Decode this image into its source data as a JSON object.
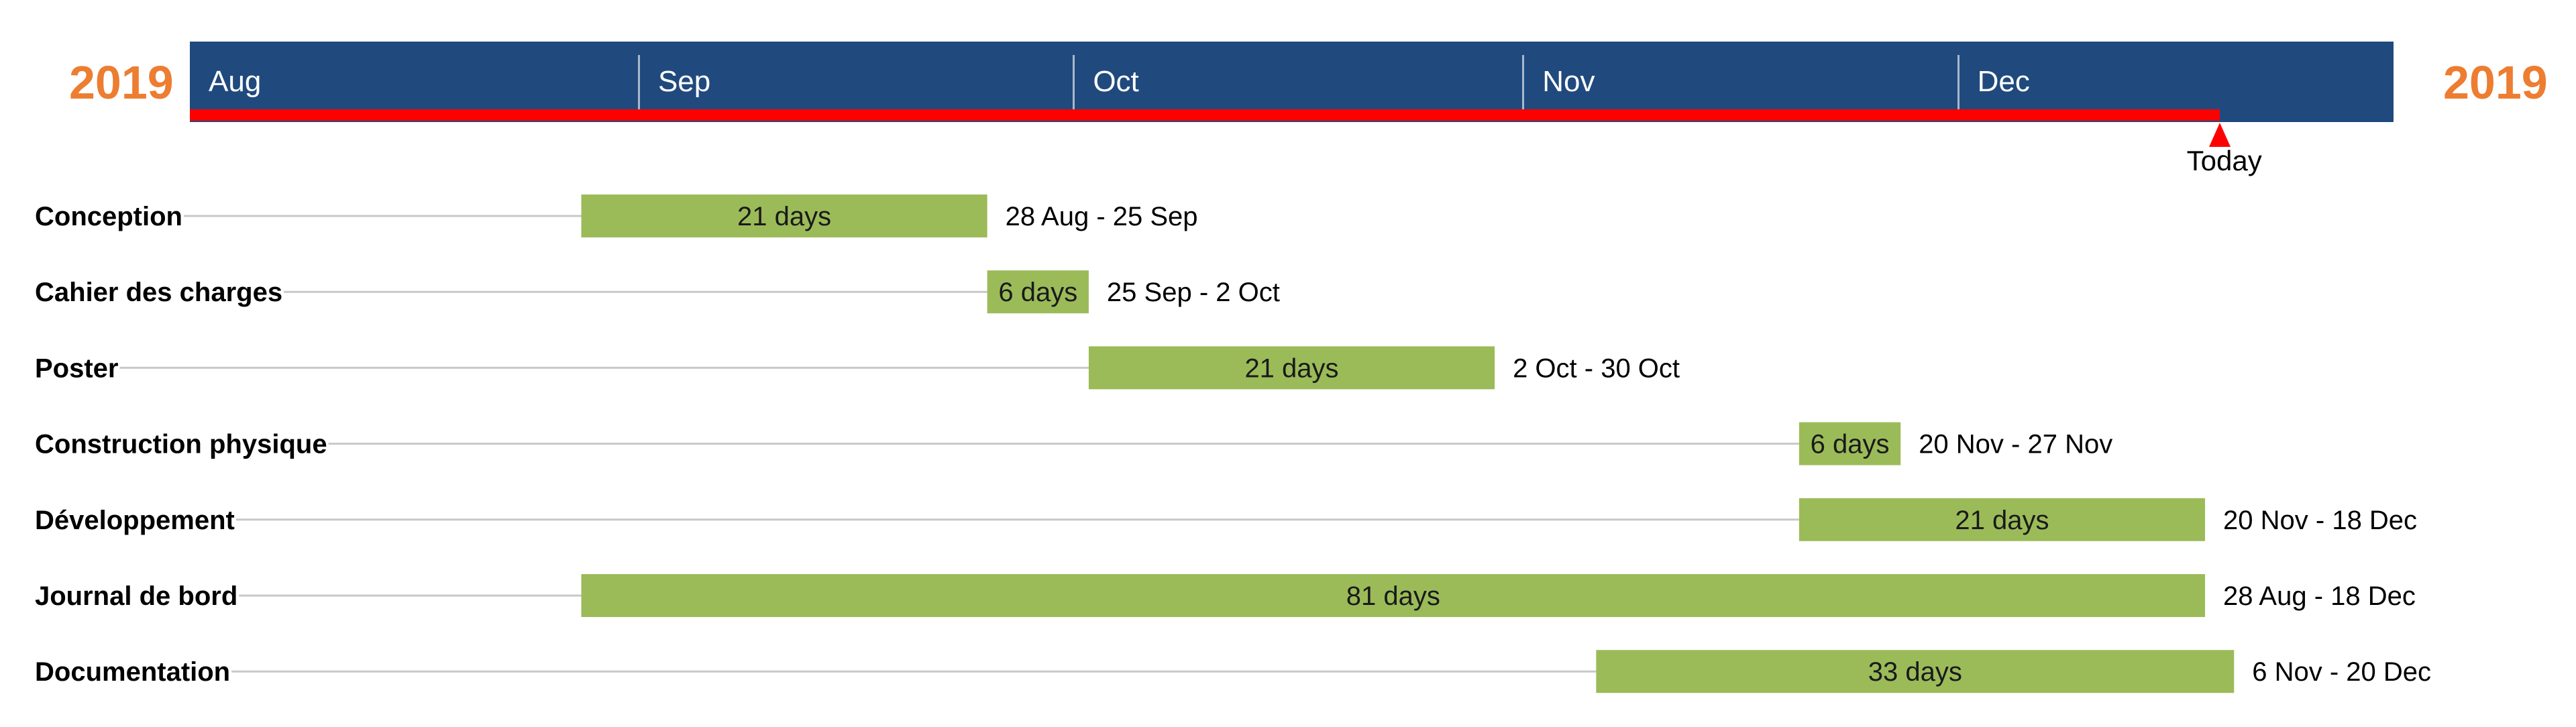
{
  "chart_data": {
    "type": "gantt",
    "year_left": "2019",
    "year_right": "2019",
    "months": [
      "Aug",
      "Sep",
      "Oct",
      "Nov",
      "Dec"
    ],
    "axis_range": [
      "2019-08-01",
      "2019-12-31"
    ],
    "today": "2019-12-19",
    "today_label": "Today",
    "tasks": [
      {
        "name": "Conception",
        "start": "2019-08-28",
        "end": "2019-09-25",
        "duration": "21 days",
        "range": "28 Aug - 25 Sep"
      },
      {
        "name": "Cahier des charges",
        "start": "2019-09-25",
        "end": "2019-10-02",
        "duration": "6 days",
        "range": "25 Sep - 2 Oct"
      },
      {
        "name": "Poster",
        "start": "2019-10-02",
        "end": "2019-10-30",
        "duration": "21 days",
        "range": "2 Oct - 30 Oct"
      },
      {
        "name": "Construction physique",
        "start": "2019-11-20",
        "end": "2019-11-27",
        "duration": "6 days",
        "range": "20 Nov - 27 Nov"
      },
      {
        "name": "Développement",
        "start": "2019-11-20",
        "end": "2019-12-18",
        "duration": "21 days",
        "range": "20 Nov - 18 Dec"
      },
      {
        "name": "Journal de bord",
        "start": "2019-08-28",
        "end": "2019-12-18",
        "duration": "81 days",
        "range": "28 Aug - 18 Dec"
      },
      {
        "name": "Documentation",
        "start": "2019-11-06",
        "end": "2019-12-20",
        "duration": "33 days",
        "range": "6 Nov - 20 Dec"
      }
    ],
    "colors": {
      "axis": "#204a7e",
      "progress": "#ff0000",
      "bar": "#9bbb59",
      "year": "#ed7d31",
      "guide": "#c8c8c8"
    }
  }
}
